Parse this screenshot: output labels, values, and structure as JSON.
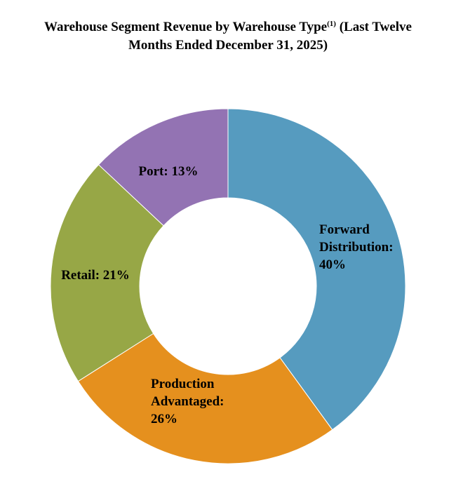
{
  "chart_data": {
    "type": "pie",
    "title_lead": "Warehouse Segment Revenue by Warehouse Type",
    "title_superscript": "(1)",
    "title_tail": " (Last Twelve Months Ended December 31, 2025)",
    "start_angle_deg": 0,
    "direction": "clockwise",
    "donut": true,
    "series": [
      {
        "label_lines": [
          "Forward",
          "Distribution:",
          "40%"
        ],
        "value": 40,
        "color": "#569BBF"
      },
      {
        "label_lines": [
          "Production",
          "Advantaged:",
          "26%"
        ],
        "value": 26,
        "color": "#E5901E"
      },
      {
        "label_lines": [
          "Retail: 21%"
        ],
        "value": 21,
        "color": "#97A746"
      },
      {
        "label_lines": [
          "Port: 13%"
        ],
        "value": 13,
        "color": "#9373B3"
      }
    ]
  }
}
